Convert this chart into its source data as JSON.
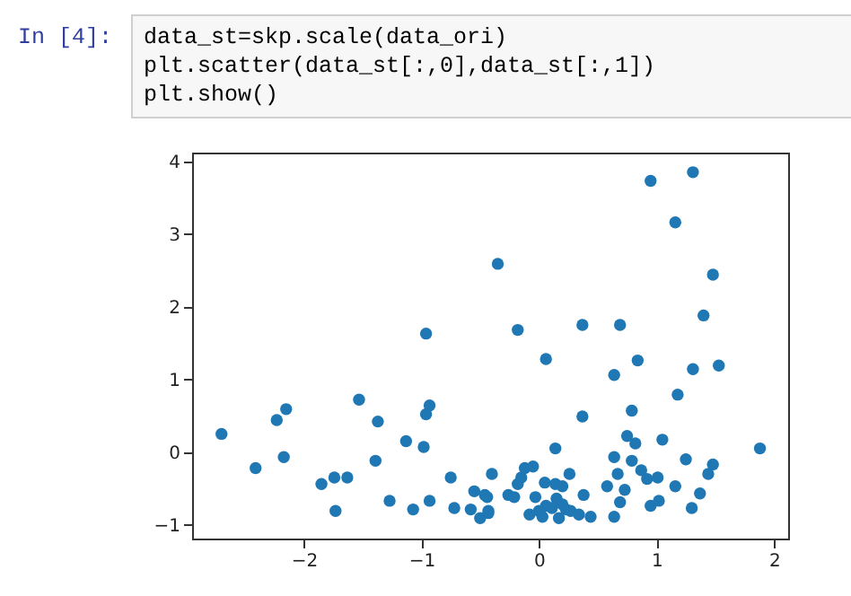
{
  "chart_data": {
    "type": "scatter",
    "annotations": [
      "In [4]:",
      "data_st=skp.scale(data_ori)",
      "plt.scatter(data_st[:,0],data_st[:,1])",
      "plt.show()"
    ],
    "xlim": [
      -2.95,
      2.12
    ],
    "ylim": [
      -1.19,
      4.12
    ],
    "xticks": [
      -2,
      -1,
      0,
      1,
      2
    ],
    "yticks": [
      -1,
      0,
      1,
      2,
      3,
      4
    ],
    "grid": false,
    "marker": "circle",
    "series": [
      {
        "color": "#1f77b4",
        "x": [
          -0.96,
          -0.35,
          -0.18,
          0.95,
          1.31,
          1.16,
          1.48,
          0.37,
          0.69,
          1.4,
          0.06,
          0.84,
          1.31,
          1.53,
          0.64,
          1.18,
          0.37,
          0.79,
          0.75,
          0.82,
          1.05,
          1.88,
          0.14,
          0.64,
          0.79,
          1.25,
          1.48,
          1.44,
          0.87,
          0.92,
          1.01,
          0.67,
          0.58,
          0.73,
          1.16,
          1.37,
          0.69,
          0.95,
          1.02,
          1.3,
          0.64,
          -0.4,
          -0.05,
          -0.12,
          -0.15,
          -0.18,
          -0.26,
          -0.21,
          -0.44,
          -0.43,
          0.05,
          0.14,
          0.2,
          0.26,
          -0.03,
          0.06,
          0.15,
          0.2,
          0.23,
          0.27,
          0.38,
          0.34,
          0.44,
          -0.08,
          0.0,
          0.03,
          0.17,
          0.11,
          -2.7,
          -2.41,
          -2.23,
          -2.15,
          -2.17,
          -1.85,
          -1.74,
          -1.63,
          -1.73,
          -1.53,
          -1.37,
          -1.39,
          -1.27,
          -1.13,
          -1.07,
          -0.98,
          -0.96,
          -0.93,
          -0.93,
          -0.75,
          -0.72,
          -0.55,
          -0.58,
          -0.5,
          -0.43,
          -0.46
        ],
        "values": [
          1.63,
          2.59,
          1.68,
          3.73,
          3.85,
          3.16,
          2.44,
          1.75,
          1.75,
          1.88,
          1.28,
          1.26,
          1.14,
          1.19,
          1.06,
          0.79,
          0.49,
          0.57,
          0.22,
          0.12,
          0.17,
          0.05,
          0.05,
          -0.07,
          -0.12,
          -0.1,
          -0.17,
          -0.3,
          -0.25,
          -0.37,
          -0.35,
          -0.3,
          -0.47,
          -0.52,
          -0.47,
          -0.57,
          -0.69,
          -0.74,
          -0.67,
          -0.77,
          -0.89,
          -0.3,
          -0.2,
          -0.22,
          -0.35,
          -0.44,
          -0.59,
          -0.62,
          -0.62,
          -0.81,
          -0.42,
          -0.44,
          -0.47,
          -0.3,
          -0.62,
          -0.74,
          -0.64,
          -0.72,
          -0.79,
          -0.81,
          -0.59,
          -0.86,
          -0.89,
          -0.86,
          -0.81,
          -0.89,
          -0.91,
          -0.77,
          0.25,
          -0.22,
          0.44,
          0.59,
          -0.07,
          -0.44,
          -0.35,
          -0.35,
          -0.81,
          0.72,
          0.42,
          -0.12,
          -0.67,
          0.15,
          -0.79,
          0.07,
          0.52,
          0.64,
          -0.67,
          -0.35,
          -0.77,
          -0.54,
          -0.79,
          -0.91,
          -0.84,
          -0.59
        ]
      }
    ]
  }
}
